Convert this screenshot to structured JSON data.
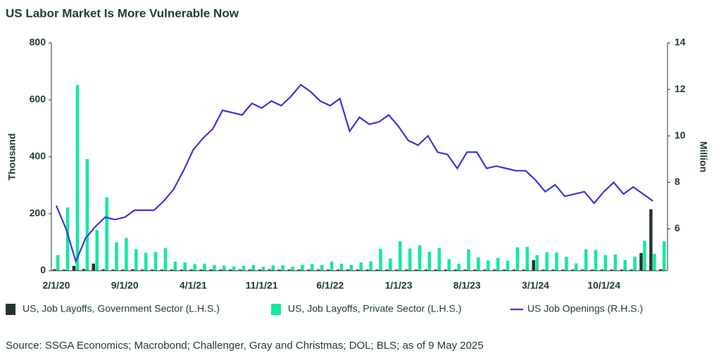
{
  "chart_data": {
    "type": "bar_line",
    "title": "US Labor Market Is More Vulnerable Now",
    "ylabel": "Thousand",
    "y2label": "Million",
    "source": "Source: SSGA Economics; Macrobond; Challenger, Gray and Christmas; DOL; BLS; as of 9 May 2025",
    "categories": [
      "2/1/20",
      null,
      null,
      null,
      null,
      null,
      null,
      "9/1/20",
      null,
      null,
      null,
      null,
      null,
      null,
      "4/1/21",
      null,
      null,
      null,
      null,
      null,
      null,
      "11/1/21",
      null,
      null,
      null,
      null,
      null,
      null,
      "6/1/22",
      null,
      null,
      null,
      null,
      null,
      null,
      "1/1/23",
      null,
      null,
      null,
      null,
      null,
      null,
      "8/1/23",
      null,
      null,
      null,
      null,
      null,
      null,
      "3/1/24",
      null,
      null,
      null,
      null,
      null,
      null,
      "10/1/24",
      null,
      null,
      null,
      null,
      null,
      null
    ],
    "ylim": [
      0,
      800
    ],
    "yticks": [
      0,
      200,
      400,
      600,
      800
    ],
    "y2lim": [
      4.2,
      14
    ],
    "y2ticks": [
      6,
      8,
      10,
      12,
      14
    ],
    "series": [
      {
        "name": "US, Job Layoffs, Government Sector (L.H.S.)",
        "color": "#25352e",
        "kind": "bar",
        "values": [
          5,
          4,
          17,
          6,
          25,
          5,
          4,
          4,
          5,
          4,
          4,
          4,
          4,
          4,
          4,
          4,
          4,
          4,
          4,
          4,
          4,
          4,
          4,
          4,
          4,
          4,
          4,
          4,
          4,
          4,
          4,
          4,
          4,
          4,
          4,
          4,
          4,
          4,
          4,
          4,
          4,
          4,
          4,
          4,
          4,
          4,
          4,
          4,
          4,
          37,
          4,
          4,
          4,
          4,
          4,
          4,
          4,
          4,
          4,
          4,
          62,
          216,
          5
        ]
      },
      {
        "name": "US, Job Layoffs, Private Sector (L.H.S.)",
        "color": "#13e8a6",
        "kind": "bar",
        "values": [
          55,
          222,
          652,
          392,
          143,
          258,
          100,
          115,
          76,
          63,
          66,
          79,
          32,
          29,
          23,
          24,
          20,
          18,
          15,
          17,
          20,
          14,
          19,
          19,
          15,
          21,
          24,
          20,
          32,
          25,
          20,
          29,
          33,
          77,
          43,
          103,
          78,
          90,
          67,
          80,
          41,
          24,
          75,
          47,
          36,
          45,
          35,
          82,
          84,
          55,
          65,
          64,
          49,
          26,
          75,
          73,
          55,
          57,
          38,
          50,
          105,
          59,
          103
        ]
      },
      {
        "name": "US Job Openings (R.H.S.)",
        "color": "#3a35d8",
        "kind": "line",
        "axis": "y2",
        "values": [
          7.0,
          6.0,
          4.6,
          5.6,
          6.1,
          6.5,
          6.4,
          6.5,
          6.8,
          6.8,
          6.8,
          7.2,
          7.7,
          8.5,
          9.4,
          9.9,
          10.3,
          11.1,
          11.0,
          10.9,
          11.4,
          11.2,
          11.5,
          11.3,
          11.7,
          12.2,
          11.9,
          11.5,
          11.3,
          11.6,
          10.2,
          10.8,
          10.5,
          10.6,
          10.9,
          10.4,
          9.8,
          9.6,
          10.0,
          9.3,
          9.2,
          8.6,
          9.3,
          9.3,
          8.6,
          8.7,
          8.6,
          8.5,
          8.5,
          8.1,
          7.6,
          7.9,
          7.4,
          7.5,
          7.6,
          7.1,
          7.6,
          8.0,
          7.5,
          7.8,
          7.5,
          7.2,
          null
        ]
      }
    ]
  }
}
